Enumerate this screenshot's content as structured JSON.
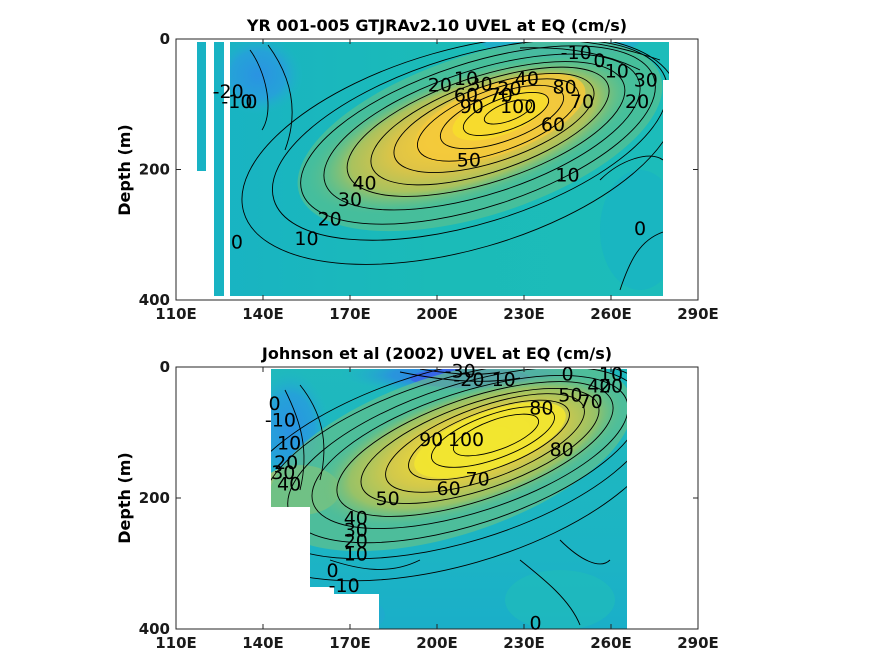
{
  "chart_data": [
    {
      "type": "heatmap",
      "subtype": "filled-contour",
      "title": "YR 001-005 GTJRAv2.10 UVEL at EQ (cm/s)",
      "xlabel": "",
      "ylabel": "Depth (m)",
      "xlim": [
        110,
        290
      ],
      "ylim": [
        0,
        400
      ],
      "y_reversed": true,
      "x_ticks": [
        "110E",
        "140E",
        "170E",
        "200E",
        "230E",
        "260E",
        "290E"
      ],
      "y_ticks": [
        "0",
        "200",
        "400"
      ],
      "colormap": "parula",
      "contour_labels": [
        {
          "text": "-10",
          "x": 248,
          "y": 20
        },
        {
          "text": "0",
          "x": 256,
          "y": 32
        },
        {
          "text": "10",
          "x": 262,
          "y": 48
        },
        {
          "text": "30",
          "x": 272,
          "y": 62
        },
        {
          "text": "20",
          "x": 269,
          "y": 95
        },
        {
          "text": "-20",
          "x": 128,
          "y": 80
        },
        {
          "text": "-10",
          "x": 131,
          "y": 95
        },
        {
          "text": "0",
          "x": 136,
          "y": 95
        },
        {
          "text": "20",
          "x": 201,
          "y": 70
        },
        {
          "text": "10",
          "x": 210,
          "y": 60
        },
        {
          "text": "30",
          "x": 215,
          "y": 68
        },
        {
          "text": "40",
          "x": 231,
          "y": 60
        },
        {
          "text": "60",
          "x": 210,
          "y": 85
        },
        {
          "text": "70",
          "x": 222,
          "y": 85
        },
        {
          "text": "20",
          "x": 225,
          "y": 75
        },
        {
          "text": "80",
          "x": 244,
          "y": 73
        },
        {
          "text": "90",
          "x": 212,
          "y": 103
        },
        {
          "text": "100",
          "x": 228,
          "y": 103
        },
        {
          "text": "70",
          "x": 250,
          "y": 95
        },
        {
          "text": "60",
          "x": 240,
          "y": 130
        },
        {
          "text": "50",
          "x": 211,
          "y": 185
        },
        {
          "text": "10",
          "x": 245,
          "y": 208
        },
        {
          "text": "40",
          "x": 175,
          "y": 220
        },
        {
          "text": "30",
          "x": 170,
          "y": 245
        },
        {
          "text": "20",
          "x": 163,
          "y": 275
        },
        {
          "text": "10",
          "x": 155,
          "y": 305
        },
        {
          "text": "0",
          "x": 131,
          "y": 310
        },
        {
          "text": "0",
          "x": 270,
          "y": 290
        }
      ]
    },
    {
      "type": "heatmap",
      "subtype": "filled-contour",
      "title": "Johnson et al (2002) UVEL at EQ (cm/s)",
      "xlabel": "",
      "ylabel": "Depth (m)",
      "xlim": [
        110,
        290
      ],
      "ylim": [
        0,
        400
      ],
      "y_reversed": true,
      "x_ticks": [
        "110E",
        "140E",
        "170E",
        "200E",
        "230E",
        "260E",
        "290E"
      ],
      "y_ticks": [
        "0",
        "200",
        "400"
      ],
      "colormap": "parula",
      "contour_labels": [
        {
          "text": "-30",
          "x": 208,
          "y": 5
        },
        {
          "text": "-20",
          "x": 211,
          "y": 18
        },
        {
          "text": "10",
          "x": 223,
          "y": 18
        },
        {
          "text": "0",
          "x": 245,
          "y": 10
        },
        {
          "text": "10",
          "x": 260,
          "y": 10
        },
        {
          "text": "50",
          "x": 246,
          "y": 42
        },
        {
          "text": "40",
          "x": 256,
          "y": 28
        },
        {
          "text": "20",
          "x": 260,
          "y": 28
        },
        {
          "text": "80",
          "x": 236,
          "y": 62
        },
        {
          "text": "70",
          "x": 253,
          "y": 52
        },
        {
          "text": "90",
          "x": 198,
          "y": 110
        },
        {
          "text": "100",
          "x": 210,
          "y": 110
        },
        {
          "text": "80",
          "x": 243,
          "y": 125
        },
        {
          "text": "-10",
          "x": 146,
          "y": 80
        },
        {
          "text": "0",
          "x": 144,
          "y": 55
        },
        {
          "text": "10",
          "x": 149,
          "y": 115
        },
        {
          "text": "20",
          "x": 148,
          "y": 145
        },
        {
          "text": "30",
          "x": 147,
          "y": 160
        },
        {
          "text": "40",
          "x": 149,
          "y": 178
        },
        {
          "text": "60",
          "x": 204,
          "y": 185
        },
        {
          "text": "70",
          "x": 214,
          "y": 170
        },
        {
          "text": "50",
          "x": 183,
          "y": 200
        },
        {
          "text": "40",
          "x": 172,
          "y": 230
        },
        {
          "text": "30",
          "x": 172,
          "y": 248
        },
        {
          "text": "20",
          "x": 172,
          "y": 265
        },
        {
          "text": "10",
          "x": 172,
          "y": 285
        },
        {
          "text": "0",
          "x": 164,
          "y": 310
        },
        {
          "text": "-10",
          "x": 168,
          "y": 333
        },
        {
          "text": "0",
          "x": 234,
          "y": 390
        }
      ]
    }
  ]
}
